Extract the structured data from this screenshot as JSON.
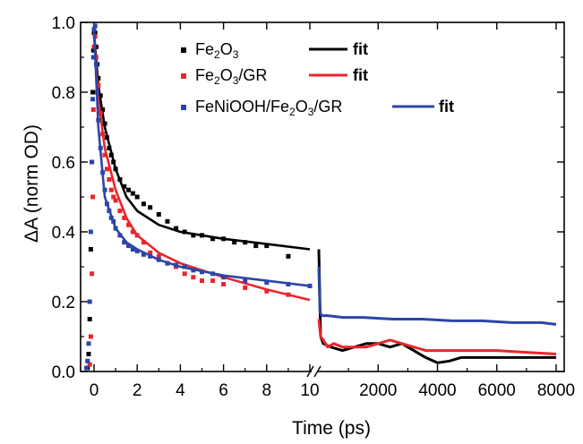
{
  "chart_data": {
    "type": "scatter",
    "title": "",
    "xlabel": "Time (ps)",
    "ylabel": "ΔA (norm OD)",
    "ylim": [
      0,
      1.0
    ],
    "y_ticks": [
      "0.0",
      "0.2",
      "0.4",
      "0.6",
      "0.8",
      "1.0"
    ],
    "x_axis_broken": true,
    "x_segment_1": {
      "unit": "ps",
      "range": [
        -0.5,
        10
      ],
      "ticks": [
        "0",
        "2",
        "4",
        "6",
        "8",
        "10"
      ]
    },
    "x_segment_2": {
      "unit": "ps",
      "range": [
        0,
        8000
      ],
      "ticks": [
        "2000",
        "4000",
        "6000",
        "8000"
      ]
    },
    "legend_position": "top-right",
    "colors": {
      "black": "#000000",
      "red": "#e8262c",
      "blue": "#2c45a8"
    },
    "series": [
      {
        "name": "Fe2O3",
        "legend_label": {
          "pre": "Fe",
          "s1": "2",
          "mid": "O",
          "s2": "3",
          "post": ""
        },
        "fit_label": "fit",
        "color": "#000000",
        "marker": "square",
        "rise": [
          [
            -0.3,
            0.01
          ],
          [
            -0.25,
            0.05
          ],
          [
            -0.2,
            0.15
          ],
          [
            -0.15,
            0.35
          ],
          [
            -0.1,
            0.6
          ],
          [
            -0.06,
            0.8
          ],
          [
            -0.03,
            0.92
          ],
          [
            0.0,
            0.97
          ]
        ],
        "points_seg1": [
          [
            0.05,
            0.97
          ],
          [
            0.1,
            0.93
          ],
          [
            0.15,
            0.88
          ],
          [
            0.2,
            0.84
          ],
          [
            0.3,
            0.79
          ],
          [
            0.4,
            0.75
          ],
          [
            0.5,
            0.71
          ],
          [
            0.6,
            0.67
          ],
          [
            0.7,
            0.64
          ],
          [
            0.8,
            0.62
          ],
          [
            0.9,
            0.6
          ],
          [
            1.0,
            0.58
          ],
          [
            1.2,
            0.55
          ],
          [
            1.4,
            0.53
          ],
          [
            1.6,
            0.52
          ],
          [
            1.8,
            0.51
          ],
          [
            2.0,
            0.5
          ],
          [
            2.3,
            0.48
          ],
          [
            2.6,
            0.47
          ],
          [
            3.0,
            0.45
          ],
          [
            3.4,
            0.43
          ],
          [
            3.8,
            0.41
          ],
          [
            4.2,
            0.4
          ],
          [
            4.6,
            0.39
          ],
          [
            5.0,
            0.39
          ],
          [
            5.5,
            0.38
          ],
          [
            6.0,
            0.38
          ],
          [
            6.5,
            0.37
          ],
          [
            7.0,
            0.37
          ],
          [
            7.5,
            0.36
          ],
          [
            8.0,
            0.36
          ],
          [
            9.0,
            0.33
          ]
        ],
        "fit_seg1": [
          [
            0.0,
            0.97
          ],
          [
            0.2,
            0.82
          ],
          [
            0.5,
            0.7
          ],
          [
            1.0,
            0.58
          ],
          [
            1.5,
            0.5
          ],
          [
            2.0,
            0.46
          ],
          [
            3.0,
            0.42
          ],
          [
            4.0,
            0.4
          ],
          [
            6.0,
            0.38
          ],
          [
            8.0,
            0.365
          ],
          [
            10.0,
            0.35
          ]
        ],
        "curve_seg2": [
          [
            0,
            0.35
          ],
          [
            60,
            0.1
          ],
          [
            150,
            0.08
          ],
          [
            400,
            0.07
          ],
          [
            800,
            0.06
          ],
          [
            1200,
            0.07
          ],
          [
            1600,
            0.08
          ],
          [
            2000,
            0.08
          ],
          [
            2400,
            0.07
          ],
          [
            2800,
            0.08
          ],
          [
            3200,
            0.06
          ],
          [
            3600,
            0.04
          ],
          [
            4000,
            0.025
          ],
          [
            4400,
            0.03
          ],
          [
            4800,
            0.04
          ],
          [
            5200,
            0.04
          ],
          [
            6000,
            0.04
          ],
          [
            7000,
            0.04
          ],
          [
            8000,
            0.04
          ]
        ]
      },
      {
        "name": "Fe2O3/GR",
        "legend_label": {
          "pre": "Fe",
          "s1": "2",
          "mid": "O",
          "s2": "3",
          "post": "/GR"
        },
        "fit_label": "fit",
        "color": "#e8262c",
        "marker": "square",
        "rise": [
          [
            -0.2,
            0.02
          ],
          [
            -0.15,
            0.1
          ],
          [
            -0.1,
            0.28
          ],
          [
            -0.06,
            0.5
          ],
          [
            -0.03,
            0.75
          ],
          [
            0.0,
            0.93
          ]
        ],
        "points_seg1": [
          [
            0.05,
            0.96
          ],
          [
            0.1,
            0.9
          ],
          [
            0.2,
            0.82
          ],
          [
            0.3,
            0.74
          ],
          [
            0.4,
            0.68
          ],
          [
            0.5,
            0.62
          ],
          [
            0.6,
            0.58
          ],
          [
            0.7,
            0.55
          ],
          [
            0.8,
            0.52
          ],
          [
            0.9,
            0.5
          ],
          [
            1.0,
            0.49
          ],
          [
            1.2,
            0.46
          ],
          [
            1.4,
            0.44
          ],
          [
            1.6,
            0.42
          ],
          [
            1.8,
            0.4
          ],
          [
            2.0,
            0.39
          ],
          [
            2.3,
            0.37
          ],
          [
            2.6,
            0.34
          ],
          [
            3.0,
            0.33
          ],
          [
            3.4,
            0.31
          ],
          [
            3.8,
            0.3
          ],
          [
            4.2,
            0.28
          ],
          [
            4.6,
            0.27
          ],
          [
            5.0,
            0.26
          ],
          [
            5.5,
            0.26
          ],
          [
            6.0,
            0.25
          ],
          [
            7.0,
            0.24
          ],
          [
            8.0,
            0.23
          ],
          [
            9.0,
            0.22
          ]
        ],
        "fit_seg1": [
          [
            0.0,
            0.96
          ],
          [
            0.2,
            0.78
          ],
          [
            0.5,
            0.64
          ],
          [
            1.0,
            0.52
          ],
          [
            1.5,
            0.44
          ],
          [
            2.0,
            0.39
          ],
          [
            3.0,
            0.34
          ],
          [
            4.0,
            0.31
          ],
          [
            6.0,
            0.27
          ],
          [
            8.0,
            0.235
          ],
          [
            10.0,
            0.205
          ]
        ],
        "curve_seg2": [
          [
            0,
            0.15
          ],
          [
            60,
            0.1
          ],
          [
            150,
            0.09
          ],
          [
            300,
            0.07
          ],
          [
            500,
            0.08
          ],
          [
            800,
            0.07
          ],
          [
            1200,
            0.07
          ],
          [
            1600,
            0.07
          ],
          [
            2000,
            0.08
          ],
          [
            2400,
            0.09
          ],
          [
            2800,
            0.08
          ],
          [
            3200,
            0.07
          ],
          [
            3600,
            0.06
          ],
          [
            4000,
            0.06
          ],
          [
            5000,
            0.06
          ],
          [
            6000,
            0.06
          ],
          [
            7000,
            0.055
          ],
          [
            8000,
            0.05
          ]
        ]
      },
      {
        "name": "FeNiOOH/Fe2O3/GR",
        "legend_label": {
          "pre": "FeNiOOH/Fe",
          "s1": "2",
          "mid": "O",
          "s2": "3",
          "post": "/GR"
        },
        "fit_label": "fit",
        "color": "#2c45a8",
        "marker": "square",
        "rise": [
          [
            -0.35,
            0.01
          ],
          [
            -0.3,
            0.03
          ],
          [
            -0.25,
            0.08
          ],
          [
            -0.2,
            0.2
          ],
          [
            -0.15,
            0.4
          ],
          [
            -0.1,
            0.6
          ],
          [
            -0.06,
            0.78
          ],
          [
            -0.03,
            0.9
          ],
          [
            0.0,
            0.98
          ]
        ],
        "points_seg1": [
          [
            0.05,
            0.99
          ],
          [
            0.1,
            0.88
          ],
          [
            0.15,
            0.8
          ],
          [
            0.2,
            0.72
          ],
          [
            0.3,
            0.64
          ],
          [
            0.4,
            0.57
          ],
          [
            0.5,
            0.52
          ],
          [
            0.6,
            0.48
          ],
          [
            0.7,
            0.46
          ],
          [
            0.8,
            0.44
          ],
          [
            0.9,
            0.43
          ],
          [
            1.0,
            0.41
          ],
          [
            1.2,
            0.39
          ],
          [
            1.4,
            0.37
          ],
          [
            1.6,
            0.36
          ],
          [
            1.8,
            0.35
          ],
          [
            2.0,
            0.345
          ],
          [
            2.3,
            0.335
          ],
          [
            2.6,
            0.33
          ],
          [
            3.0,
            0.32
          ],
          [
            3.4,
            0.31
          ],
          [
            3.8,
            0.305
          ],
          [
            4.2,
            0.3
          ],
          [
            4.6,
            0.29
          ],
          [
            5.0,
            0.285
          ],
          [
            5.5,
            0.28
          ],
          [
            6.0,
            0.27
          ],
          [
            7.0,
            0.26
          ],
          [
            8.0,
            0.255
          ],
          [
            9.0,
            0.25
          ],
          [
            10.0,
            0.245
          ]
        ],
        "fit_seg1": [
          [
            0.0,
            0.98
          ],
          [
            0.2,
            0.7
          ],
          [
            0.5,
            0.5
          ],
          [
            1.0,
            0.41
          ],
          [
            1.5,
            0.37
          ],
          [
            2.0,
            0.35
          ],
          [
            3.0,
            0.32
          ],
          [
            4.0,
            0.3
          ],
          [
            6.0,
            0.275
          ],
          [
            8.0,
            0.26
          ],
          [
            10.0,
            0.245
          ]
        ],
        "curve_seg2": [
          [
            0,
            0.3
          ],
          [
            40,
            0.17
          ],
          [
            100,
            0.16
          ],
          [
            300,
            0.16
          ],
          [
            800,
            0.155
          ],
          [
            1500,
            0.155
          ],
          [
            2500,
            0.15
          ],
          [
            3500,
            0.15
          ],
          [
            4500,
            0.145
          ],
          [
            5500,
            0.145
          ],
          [
            6500,
            0.14
          ],
          [
            7500,
            0.14
          ],
          [
            8000,
            0.135
          ]
        ]
      }
    ]
  }
}
